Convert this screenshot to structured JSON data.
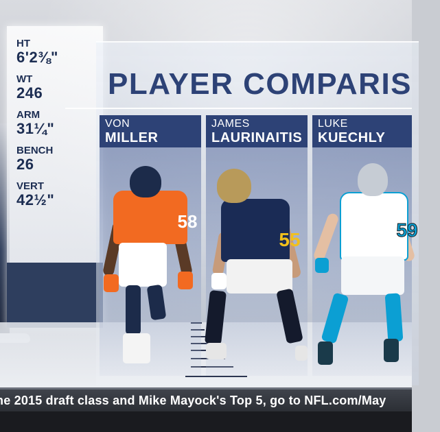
{
  "title": "PLAYER COMPARIS",
  "stats": [
    {
      "label": "HT",
      "value": "6'2⅜\""
    },
    {
      "label": "WT",
      "value": "246"
    },
    {
      "label": "ARM",
      "value": "31¼\""
    },
    {
      "label": "BENCH",
      "value": "26"
    },
    {
      "label": "VERT",
      "value": "42½\""
    }
  ],
  "players": [
    {
      "first": "VON",
      "last": "MILLER",
      "number": "58",
      "team_colors": {
        "primary": "#f26a21",
        "helmet": "#1c2b4a",
        "pants": "#ffffff"
      }
    },
    {
      "first": "JAMES",
      "last": "LAURINAITIS",
      "number": "55",
      "team_colors": {
        "primary": "#1a2b55",
        "helmet": "#b89a5a",
        "pants": "#ffffff"
      }
    },
    {
      "first": "LUKE",
      "last": "KUECHLY",
      "number": "59",
      "team_colors": {
        "primary": "#ffffff",
        "helmet": "#c6ccd4",
        "accent": "#0b9fd3"
      }
    }
  ],
  "ticker": {
    "text": "he 2015 draft class and Mike Mayock's Top 5, go to NFL.com/May"
  },
  "colors": {
    "brand_navy": "#2d4276",
    "ticker_bg": "#35383e"
  }
}
